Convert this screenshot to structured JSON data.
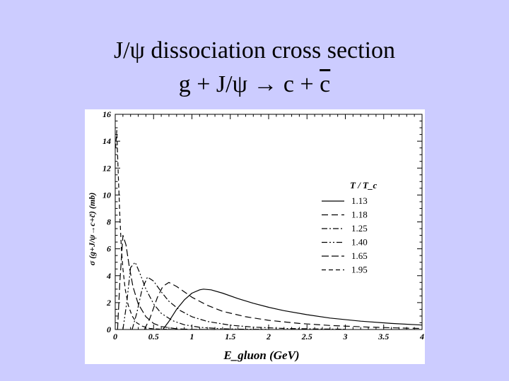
{
  "slide": {
    "title_line1": "J/ψ dissociation cross section",
    "title_line2_prefix": "g + J/ψ → c + ",
    "title_line2_bar": "c"
  },
  "chart_data": {
    "type": "line",
    "xlabel": "E_gluon (GeV)",
    "ylabel": "σ (g+J/ψ→c+c̄) (mb)",
    "xlim": [
      0,
      4
    ],
    "ylim": [
      0,
      16
    ],
    "xticks": [
      "0",
      "0.5",
      "1",
      "1.5",
      "2",
      "2.5",
      "3",
      "3.5",
      "4"
    ],
    "yticks": [
      "0",
      "2",
      "4",
      "6",
      "8",
      "10",
      "12",
      "14",
      "16"
    ],
    "grid": false,
    "legend_title": "T / T_c",
    "legend_position": "right",
    "series": [
      {
        "name": "1.13",
        "dash": "solid",
        "x": [
          0.62,
          0.7,
          0.8,
          0.9,
          1.0,
          1.1,
          1.15,
          1.25,
          1.4,
          1.6,
          1.8,
          2.0,
          2.2,
          2.5,
          2.8,
          3.2,
          3.6,
          4.0
        ],
        "y": [
          0,
          0.6,
          1.5,
          2.2,
          2.7,
          2.95,
          3.0,
          2.95,
          2.7,
          2.3,
          1.95,
          1.65,
          1.4,
          1.1,
          0.85,
          0.62,
          0.45,
          0.33
        ]
      },
      {
        "name": "1.18",
        "dash": "dashed",
        "x": [
          0.38,
          0.45,
          0.55,
          0.62,
          0.7,
          0.8,
          0.9,
          1.0,
          1.2,
          1.4,
          1.7,
          2.0,
          2.4,
          2.8,
          3.3,
          3.8,
          4.0
        ],
        "y": [
          0,
          0.8,
          2.4,
          3.2,
          3.5,
          3.2,
          2.8,
          2.4,
          1.8,
          1.35,
          0.95,
          0.68,
          0.45,
          0.3,
          0.18,
          0.1,
          0.08
        ]
      },
      {
        "name": "1.25",
        "dash": "dashdot",
        "x": [
          0.22,
          0.28,
          0.35,
          0.42,
          0.5,
          0.6,
          0.7,
          0.85,
          1.0,
          1.2,
          1.5,
          1.8,
          2.2,
          2.6,
          3.0
        ],
        "y": [
          0,
          1.2,
          3.0,
          3.9,
          3.6,
          2.8,
          2.1,
          1.4,
          0.95,
          0.6,
          0.32,
          0.18,
          0.08,
          0.04,
          0.02
        ]
      },
      {
        "name": "1.40",
        "dash": "dashdotdot",
        "x": [
          0.1,
          0.15,
          0.2,
          0.26,
          0.32,
          0.4,
          0.5,
          0.6,
          0.75,
          0.9,
          1.1,
          1.4,
          1.7,
          2.0
        ],
        "y": [
          0,
          2.0,
          4.6,
          5.0,
          4.2,
          3.0,
          1.9,
          1.2,
          0.65,
          0.35,
          0.16,
          0.05,
          0.02,
          0.01
        ]
      },
      {
        "name": "1.65",
        "dash": "longdash",
        "x": [
          0.03,
          0.06,
          0.1,
          0.14,
          0.18,
          0.23,
          0.3,
          0.4,
          0.5,
          0.6,
          0.8,
          1.0,
          1.3
        ],
        "y": [
          0,
          3.5,
          7.0,
          6.3,
          4.8,
          3.2,
          1.9,
          0.95,
          0.45,
          0.22,
          0.05,
          0.01,
          0.0
        ]
      },
      {
        "name": "1.95",
        "dash": "shortdash",
        "x": [
          0.005,
          0.02,
          0.04,
          0.06,
          0.08,
          0.1,
          0.13,
          0.17,
          0.22,
          0.28,
          0.35,
          0.45,
          0.6,
          0.8
        ],
        "y": [
          13.5,
          14.8,
          11.5,
          8.5,
          6.0,
          4.5,
          3.0,
          1.8,
          1.0,
          0.5,
          0.25,
          0.08,
          0.02,
          0.0
        ]
      }
    ]
  }
}
